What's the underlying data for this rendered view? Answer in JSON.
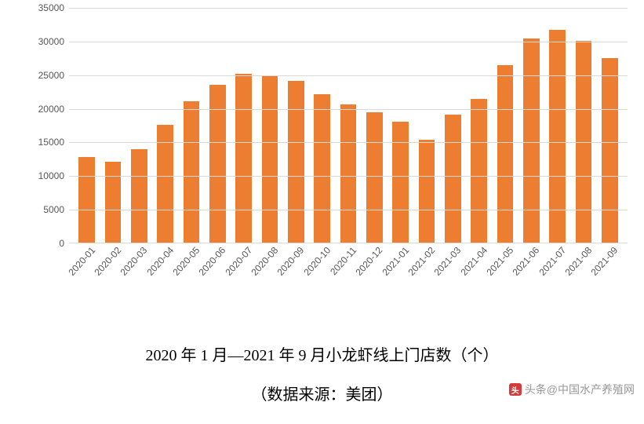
{
  "chart": {
    "type": "bar",
    "categories": [
      "2020-01",
      "2020-02",
      "2020-03",
      "2020-04",
      "2020-05",
      "2020-06",
      "2020-07",
      "2020-08",
      "2020-09",
      "2020-10",
      "2020-11",
      "2020-12",
      "2021-01",
      "2021-02",
      "2021-03",
      "2021-04",
      "2021-05",
      "2021-06",
      "2021-07",
      "2021-08",
      "2021-09"
    ],
    "values": [
      12700,
      12000,
      13900,
      17500,
      21000,
      23500,
      25100,
      24900,
      24000,
      22000,
      20500,
      19400,
      18000,
      15300,
      19000,
      21400,
      26400,
      30300,
      31600,
      30000,
      27400
    ],
    "bar_color": "#ed7d31",
    "background_color": "#ffffff",
    "grid_color": "#d9d9d9",
    "axis_text_color": "#595959",
    "ylim": [
      0,
      35000
    ],
    "ytick_step": 5000,
    "yticks": [
      0,
      5000,
      10000,
      15000,
      20000,
      25000,
      30000,
      35000
    ],
    "bar_width_ratio": 0.62,
    "tick_fontsize": 12,
    "xlabel_rotation_deg": -48
  },
  "caption": "2020 年 1 月—2021 年 9 月小龙虾线上门店数（个）",
  "source": "（数据来源：美团）",
  "watermark": {
    "logo_text": "头",
    "text": "头条@中国水产养殖网"
  }
}
